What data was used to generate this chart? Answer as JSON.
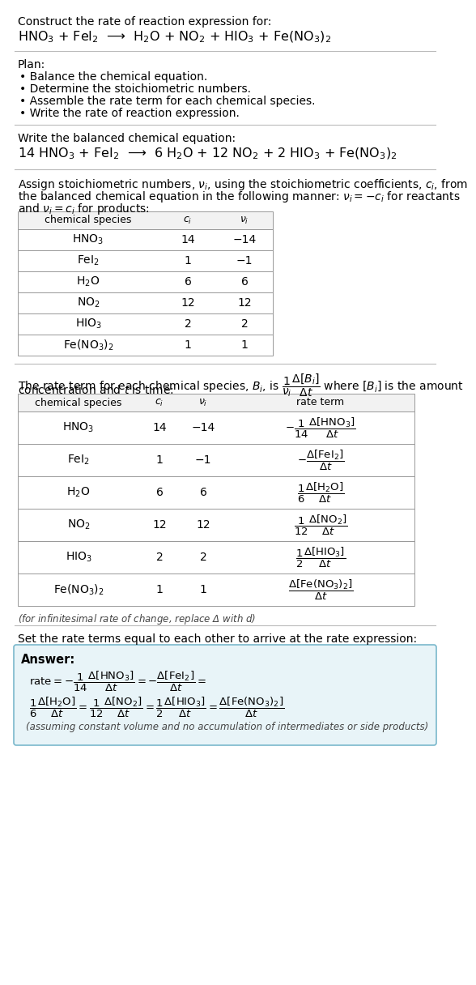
{
  "title_line1": "Construct the rate of reaction expression for:",
  "title_line2": "HNO$_3$ + FeI$_2$  ⟶  H$_2$O + NO$_2$ + HIO$_3$ + Fe(NO$_3$)$_2$",
  "plan_header": "Plan:",
  "plan_items": [
    "• Balance the chemical equation.",
    "• Determine the stoichiometric numbers.",
    "• Assemble the rate term for each chemical species.",
    "• Write the rate of reaction expression."
  ],
  "balanced_header": "Write the balanced chemical equation:",
  "balanced_eq": "14 HNO$_3$ + FeI$_2$  ⟶  6 H$_2$O + 12 NO$_2$ + 2 HIO$_3$ + Fe(NO$_3$)$_2$",
  "stoich_intro1": "Assign stoichiometric numbers, $\\nu_i$, using the stoichiometric coefficients, $c_i$, from",
  "stoich_intro2": "the balanced chemical equation in the following manner: $\\nu_i = -c_i$ for reactants",
  "stoich_intro3": "and $\\nu_i = c_i$ for products:",
  "table1_headers": [
    "chemical species",
    "$c_i$",
    "$\\nu_i$"
  ],
  "table1_rows": [
    [
      "HNO$_3$",
      "14",
      "−14"
    ],
    [
      "FeI$_2$",
      "1",
      "−1"
    ],
    [
      "H$_2$O",
      "6",
      "6"
    ],
    [
      "NO$_2$",
      "12",
      "12"
    ],
    [
      "HIO$_3$",
      "2",
      "2"
    ],
    [
      "Fe(NO$_3$)$_2$",
      "1",
      "1"
    ]
  ],
  "rate_intro1": "The rate term for each chemical species, $B_i$, is $\\dfrac{1}{\\nu_i}\\dfrac{\\Delta[B_i]}{\\Delta t}$ where $[B_i]$ is the amount",
  "rate_intro2": "concentration and $t$ is time:",
  "table2_headers": [
    "chemical species",
    "$c_i$",
    "$\\nu_i$",
    "rate term"
  ],
  "table2_rows": [
    [
      "HNO$_3$",
      "14",
      "−14",
      "$-\\dfrac{1}{14}\\dfrac{\\Delta[\\mathrm{HNO_3}]}{\\Delta t}$"
    ],
    [
      "FeI$_2$",
      "1",
      "−1",
      "$-\\dfrac{\\Delta[\\mathrm{FeI_2}]}{\\Delta t}$"
    ],
    [
      "H$_2$O",
      "6",
      "6",
      "$\\dfrac{1}{6}\\dfrac{\\Delta[\\mathrm{H_2O}]}{\\Delta t}$"
    ],
    [
      "NO$_2$",
      "12",
      "12",
      "$\\dfrac{1}{12}\\dfrac{\\Delta[\\mathrm{NO_2}]}{\\Delta t}$"
    ],
    [
      "HIO$_3$",
      "2",
      "2",
      "$\\dfrac{1}{2}\\dfrac{\\Delta[\\mathrm{HIO_3}]}{\\Delta t}$"
    ],
    [
      "Fe(NO$_3$)$_2$",
      "1",
      "1",
      "$\\dfrac{\\Delta[\\mathrm{Fe(NO_3)_2}]}{\\Delta t}$"
    ]
  ],
  "infinitesimal_note": "(for infinitesimal rate of change, replace Δ with $d$)",
  "set_rate_text": "Set the rate terms equal to each other to arrive at the rate expression:",
  "answer_label": "Answer:",
  "answer_line1": "$\\mathrm{rate} = -\\dfrac{1}{14}\\dfrac{\\Delta[\\mathrm{HNO_3}]}{\\Delta t} = -\\dfrac{\\Delta[\\mathrm{FeI_2}]}{\\Delta t} =$",
  "answer_line2": "$\\dfrac{1}{6}\\dfrac{\\Delta[\\mathrm{H_2O}]}{\\Delta t} = \\dfrac{1}{12}\\dfrac{\\Delta[\\mathrm{NO_2}]}{\\Delta t} = \\dfrac{1}{2}\\dfrac{\\Delta[\\mathrm{HIO_3}]}{\\Delta t} = \\dfrac{\\Delta[\\mathrm{Fe(NO_3)_2}]}{\\Delta t}$",
  "answer_note": "(assuming constant volume and no accumulation of intermediates or side products)",
  "bg_color": "#ffffff",
  "answer_bg_color": "#e8f4f8",
  "answer_border_color": "#7ab8cc",
  "text_color": "#000000",
  "table_border_color": "#999999",
  "separator_color": "#bbbbbb"
}
